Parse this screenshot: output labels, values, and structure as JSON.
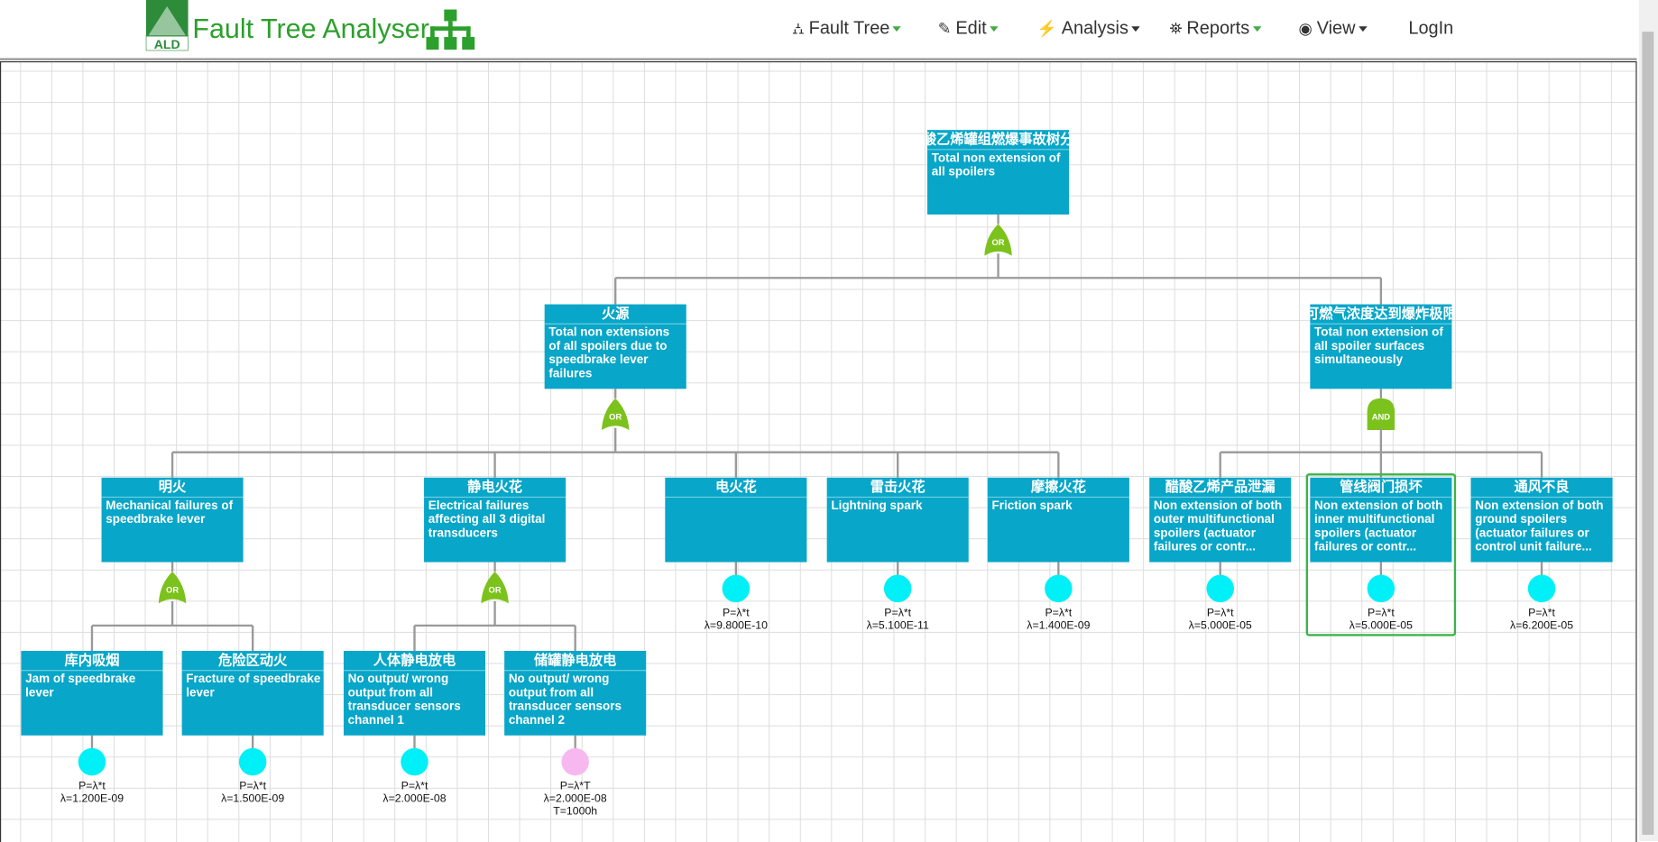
{
  "header": {
    "logo": "ALD",
    "brand": "Fault Tree Analyser",
    "menu": [
      "Fault Tree",
      "Edit",
      "Analysis",
      "Reports",
      "View",
      "LogIn"
    ]
  },
  "nodes": [
    {
      "title": "酸乙烯罐组燃爆事故树分",
      "description": "Total non extension of all spoilers",
      "gate": "OR"
    },
    {
      "title": "火源",
      "description": "Total non extensions of all spoilers due to speedbrake lever failures",
      "gate": "OR"
    },
    {
      "title": "可燃气浓度达到爆炸极限",
      "description": "Total non extension of all spoiler surfaces simultaneously",
      "gate": "AND"
    },
    {
      "title": "明火",
      "description": "Mechanical failures of speedbrake lever",
      "gate": "OR"
    },
    {
      "title": "静电火花",
      "description": "Electrical failures affecting all 3 digital transducers",
      "gate": "OR"
    },
    {
      "title": "电火花",
      "formula": "P=λ*t",
      "rate": "λ=9.800E-10"
    },
    {
      "title": "雷击火花",
      "description": "Lightning spark",
      "formula": "P=λ*t",
      "rate": "λ=5.100E-11"
    },
    {
      "title": "摩擦火花",
      "description": "Friction spark",
      "formula": "P=λ*t",
      "rate": "λ=1.400E-09"
    },
    {
      "title": "醋酸乙烯产品泄漏",
      "description": "Non extension of both outer multifunctional spoilers (actuator failures or contr...",
      "formula": "P=λ*t",
      "rate": "λ=5.000E-05"
    },
    {
      "title": "管线阀门损坏",
      "description": "Non extension of both inner multifunctional spoilers (actuator failures or contr...",
      "formula": "P=λ*t",
      "rate": "λ=5.000E-05"
    },
    {
      "title": "通风不良",
      "description": "Non extension of both ground spoilers (actuator failures or control unit failure...",
      "formula": "P=λ*t",
      "rate": "λ=6.200E-05"
    },
    {
      "title": "库内吸烟",
      "description": "Jam of speedbrake lever",
      "formula": "P=λ*t",
      "rate": "λ=1.200E-09"
    },
    {
      "title": "危险区动火",
      "description": "Fracture of speedbrake lever",
      "formula": "P=λ*t",
      "rate": "λ=1.500E-09"
    },
    {
      "title": "人体静电放电",
      "description": "No output/ wrong output from all transducer sensors channel 1",
      "formula": "P=λ*t",
      "rate": "λ=2.000E-08"
    },
    {
      "title": "储罐静电放电",
      "description": "No output/ wrong output from all transducer sensors channel 2",
      "formula": "P=λ*T",
      "rate": "λ=2.000E-08",
      "time": "T=1000h"
    }
  ]
}
